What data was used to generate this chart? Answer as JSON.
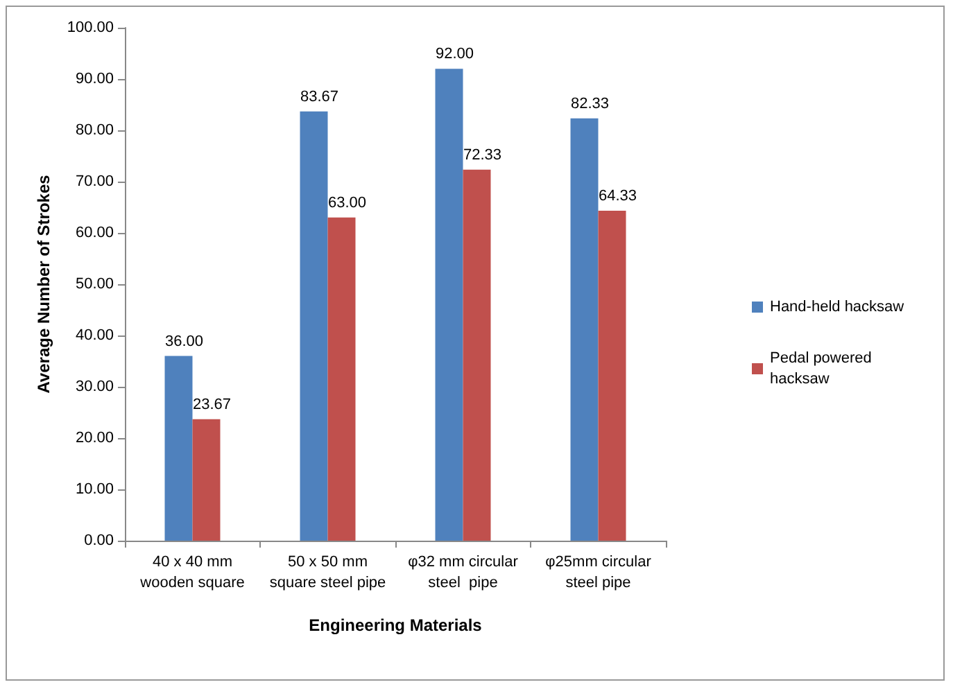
{
  "chart_data": {
    "type": "bar",
    "xlabel": "Engineering Materials",
    "ylabel": "Average Number of Strokes",
    "categories": [
      "40 x 40 mm\nwooden square",
      "50 x 50 mm\nsquare steel pipe",
      "φ32 mm circular\nsteel  pipe",
      "φ25mm circular\nsteel pipe"
    ],
    "series": [
      {
        "name": "Hand-held hacksaw",
        "color": "#4f81bd",
        "values": [
          36.0,
          83.67,
          92.0,
          82.33
        ],
        "value_labels": [
          "36.00",
          "83.67",
          "92.00",
          "82.33"
        ]
      },
      {
        "name": "Pedal powered hacksaw",
        "color": "#c0504d",
        "values": [
          23.67,
          63.0,
          72.33,
          64.33
        ],
        "value_labels": [
          "23.67",
          "63.00",
          "72.33",
          "64.33"
        ]
      }
    ],
    "ylim": [
      0,
      100
    ],
    "yticks": [
      {
        "value": 0,
        "label": "0.00"
      },
      {
        "value": 10,
        "label": "10.00"
      },
      {
        "value": 20,
        "label": "20.00"
      },
      {
        "value": 30,
        "label": "30.00"
      },
      {
        "value": 40,
        "label": "40.00"
      },
      {
        "value": 50,
        "label": "50.00"
      },
      {
        "value": 60,
        "label": "60.00"
      },
      {
        "value": 70,
        "label": "70.00"
      },
      {
        "value": 80,
        "label": "80.00"
      },
      {
        "value": 90,
        "label": "90.00"
      },
      {
        "value": 100,
        "label": "100.00"
      }
    ],
    "grid": false,
    "legend": "right"
  }
}
